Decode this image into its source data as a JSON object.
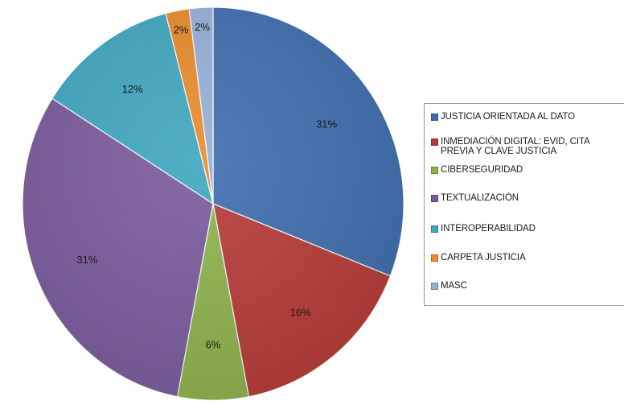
{
  "chart_data": {
    "type": "pie",
    "title": "",
    "categories": [
      "JUSTICIA ORIENTADA AL DATO",
      "INMEDIACIÓN DIGITAL: EVID, CITA PREVIA Y CLAVE JUSTICIA",
      "CIBERSEGURIDAD",
      "TEXTUALIZACIÓN",
      "INTEROPERABILIDAD",
      "CARPETA JUSTICIA",
      "MASC"
    ],
    "values": [
      31,
      16,
      6,
      31,
      12,
      2,
      2
    ],
    "data_labels": [
      "31%",
      "16%",
      "6%",
      "31%",
      "12%",
      "2%",
      "2%"
    ],
    "colors": [
      "#3E6DAE",
      "#B63A37",
      "#8DB24A",
      "#7A5A9C",
      "#3EA6BF",
      "#E88B2B",
      "#96AFD8"
    ],
    "legend": {
      "placement": "right",
      "entries": [
        "JUSTICIA ORIENTADA AL DATO",
        "INMEDIACIÓN DIGITAL: EVID, CITA\nPREVIA Y CLAVE JUSTICIA",
        "CIBERSEGURIDAD",
        "TEXTUALIZACIÓN",
        "INTEROPERABILIDAD",
        " CARPETA JUSTICIA",
        "MASC"
      ]
    }
  }
}
